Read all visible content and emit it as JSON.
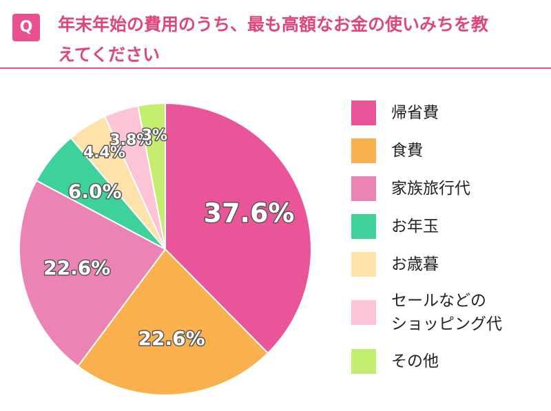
{
  "question_label": "Q",
  "chart_data": {
    "type": "pie",
    "title": "年末年始の費用のうち、最も高額なお金の使いみちを教えてください",
    "categories": [
      "帰省費",
      "食費",
      "家族旅行代",
      "お年玉",
      "お歳暮",
      "セールなどの\nショッピング代",
      "その他"
    ],
    "values": [
      37.6,
      22.6,
      22.6,
      6.0,
      4.4,
      3.8,
      3
    ],
    "value_labels": [
      "37.6%",
      "22.6%",
      "22.6%",
      "6.0%",
      "4.4%",
      "3.8%",
      "3%"
    ],
    "colors": [
      "#ea5599",
      "#fbb04e",
      "#ec83b5",
      "#3fd19a",
      "#fde3aa",
      "#fdc4d6",
      "#c3ee70"
    ],
    "legend": "right"
  }
}
